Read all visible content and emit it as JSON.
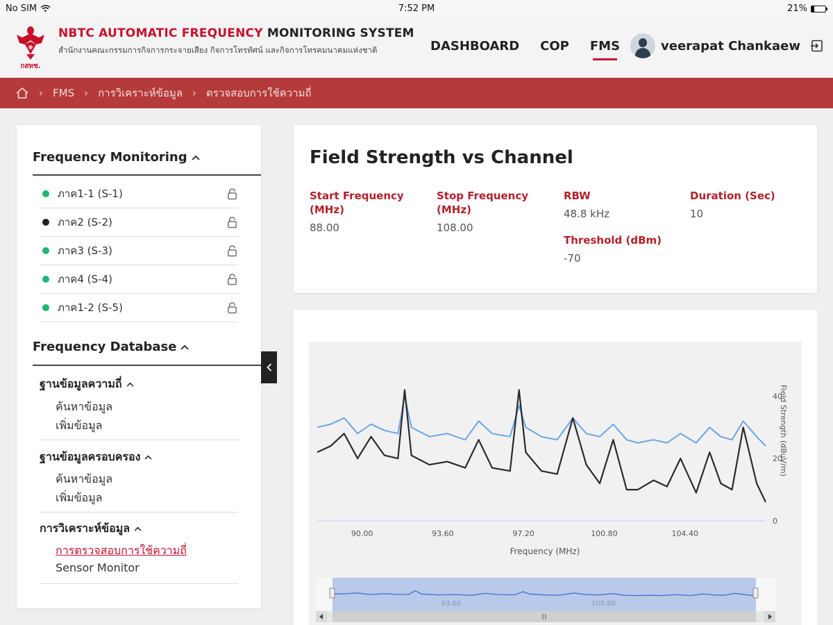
{
  "status": {
    "carrier": "No SIM",
    "time": "7:52 PM",
    "battery": "21%",
    "battery_level": 0.21
  },
  "header": {
    "title_red": "NBTC AUTOMATIC FREQUENCY",
    "title_dark": "MONITORING SYSTEM",
    "subtitle": "สำนักงานคณะกรรมการกิจการกระจายเสียง กิจการโทรทัศน์ และกิจการโทรคมนาคมแห่งชาติ",
    "logo_text": "กสทช.",
    "nav": [
      {
        "label": "DASHBOARD",
        "active": false
      },
      {
        "label": "COP",
        "active": false
      },
      {
        "label": "FMS",
        "active": true
      }
    ],
    "user_name": "veerapat Chankaew"
  },
  "breadcrumb": [
    "FMS",
    "การวิเคราะห์ข้อมูล",
    "ตรวจสอบการใช้ความถี่"
  ],
  "sidebar": {
    "monitoring_title": "Frequency Monitoring",
    "stations": [
      {
        "label": "ภาค1-1 (S-1)",
        "status_color": "#22b573"
      },
      {
        "label": "ภาค2 (S-2)",
        "status_color": "#222222"
      },
      {
        "label": "ภาค3 (S-3)",
        "status_color": "#22b573"
      },
      {
        "label": "ภาค4 (S-4)",
        "status_color": "#22b573"
      },
      {
        "label": "ภาค1-2 (S-5)",
        "status_color": "#22b573"
      }
    ],
    "database_title": "Frequency Database",
    "groups": [
      {
        "title": "ฐานข้อมูลความถี่",
        "links": [
          "ค้นหาข้อมูล",
          "เพิ่มข้อมูล"
        ]
      },
      {
        "title": "ฐานข้อมูลครอบครอง",
        "links": [
          "ค้นหาข้อมูล",
          "เพิ่มข้อมูล"
        ]
      },
      {
        "title": "การวิเคราะห์ข้อมูล",
        "links": [
          "การตรวจสอบการใช้ความถี่",
          "Sensor Monitor"
        ]
      }
    ]
  },
  "info": {
    "title": "Field Strength vs Channel",
    "start_label_1": "Start Frequency",
    "start_label_2": "(MHz)",
    "start_value": "88.00",
    "stop_label_1": "Stop Frequency",
    "stop_label_2": "(MHz)",
    "stop_value": "108.00",
    "rbw_label": "RBW",
    "rbw_value": "48.8 kHz",
    "threshold_label": "Threshold (dBm)",
    "threshold_value": "-70",
    "duration_label": "Duration (Sec)",
    "duration_value": "10"
  },
  "chart_data": {
    "type": "line",
    "xlabel": "Frequency (MHz)",
    "ylabel": "Field Strength (dBuV/m)",
    "xlim": [
      88.0,
      108.0
    ],
    "ylim": [
      0,
      45
    ],
    "x_ticks": [
      "90.00",
      "93.60",
      "97.20",
      "100.80",
      "104.40"
    ],
    "y_ticks": [
      "0",
      "20",
      "40"
    ],
    "navigator_ticks": [
      "93.60",
      "100.80"
    ],
    "colors": {
      "max_hold": "#6aa5e8",
      "current": "#2a2a2a",
      "navigator": "#4a6fd0"
    },
    "series": [
      {
        "x": [
          88.0,
          88.6,
          89.2,
          89.8,
          90.4,
          91.0,
          91.6,
          91.9,
          92.2,
          93.0,
          93.8,
          94.6,
          95.2,
          95.8,
          96.6,
          97.0,
          97.3,
          98.0,
          98.7,
          99.4,
          100.0,
          100.6,
          101.2,
          101.8,
          102.3,
          103.0,
          103.6,
          104.2,
          104.9,
          105.5,
          106.0,
          106.5,
          107.0,
          107.6,
          108.0
        ],
        "y": [
          30,
          31,
          33,
          28,
          31,
          29,
          28,
          40,
          30,
          27,
          28,
          26,
          32,
          28,
          27,
          37,
          30,
          27,
          26,
          33,
          28,
          27,
          31,
          26,
          25,
          26,
          25,
          28,
          25,
          30,
          27,
          26,
          32,
          27,
          24
        ]
      },
      {
        "x": [
          88.0,
          88.6,
          89.2,
          89.8,
          90.4,
          91.0,
          91.6,
          91.9,
          92.2,
          93.0,
          93.8,
          94.6,
          95.2,
          95.8,
          96.6,
          97.0,
          97.3,
          98.0,
          98.7,
          99.4,
          100.0,
          100.6,
          101.2,
          101.8,
          102.3,
          103.0,
          103.6,
          104.2,
          104.9,
          105.5,
          106.0,
          106.5,
          107.0,
          107.6,
          108.0
        ],
        "y": [
          22,
          24,
          28,
          20,
          27,
          21,
          20,
          42,
          21,
          18,
          19,
          17,
          26,
          17,
          16,
          42,
          22,
          16,
          15,
          33,
          18,
          12,
          26,
          10,
          10,
          13,
          11,
          20,
          9,
          22,
          12,
          10,
          30,
          12,
          6
        ]
      }
    ]
  }
}
